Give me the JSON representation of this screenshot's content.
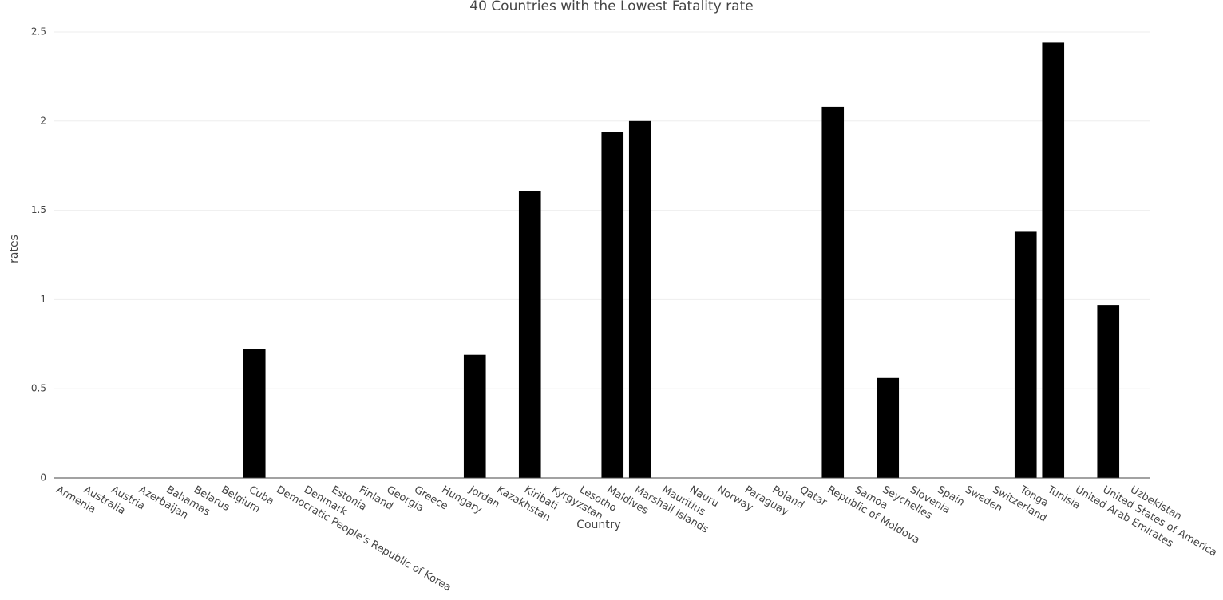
{
  "chart_data": {
    "type": "bar",
    "title": "40 Countries with the Lowest Fatality rate",
    "x_label": "Country",
    "y_label": "rates",
    "categories": [
      "Armenia",
      "Australia",
      "Austria",
      "Azerbaijan",
      "Bahamas",
      "Belarus",
      "Belgium",
      "Cuba",
      "Democratic People's Republic of Korea",
      "Denmark",
      "Estonia",
      "Finland",
      "Georgia",
      "Greece",
      "Hungary",
      "Jordan",
      "Kazakhstan",
      "Kiribati",
      "Kyrgyzstan",
      "Lesotho",
      "Maldives",
      "Marshall Islands",
      "Mauritius",
      "Nauru",
      "Norway",
      "Paraguay",
      "Poland",
      "Qatar",
      "Republic of Moldova",
      "Samoa",
      "Seychelles",
      "Slovenia",
      "Spain",
      "Sweden",
      "Switzerland",
      "Tonga",
      "Tunisia",
      "United Arab Emirates",
      "United States of America",
      "Uzbekistan"
    ],
    "values": [
      0,
      0,
      0,
      0,
      0,
      0,
      0,
      0.72,
      0,
      0,
      0,
      0,
      0,
      0,
      0,
      0.69,
      0,
      1.61,
      0,
      0,
      1.94,
      2.0,
      0,
      0,
      0,
      0,
      0,
      0,
      2.08,
      0,
      0.56,
      0,
      0,
      0,
      0,
      1.38,
      2.44,
      0,
      0.97,
      0
    ],
    "color": "#000000",
    "ylim": [
      0,
      2.5
    ],
    "yticks": [
      0,
      0.5,
      1,
      1.5,
      2,
      2.5
    ],
    "grid": true
  }
}
